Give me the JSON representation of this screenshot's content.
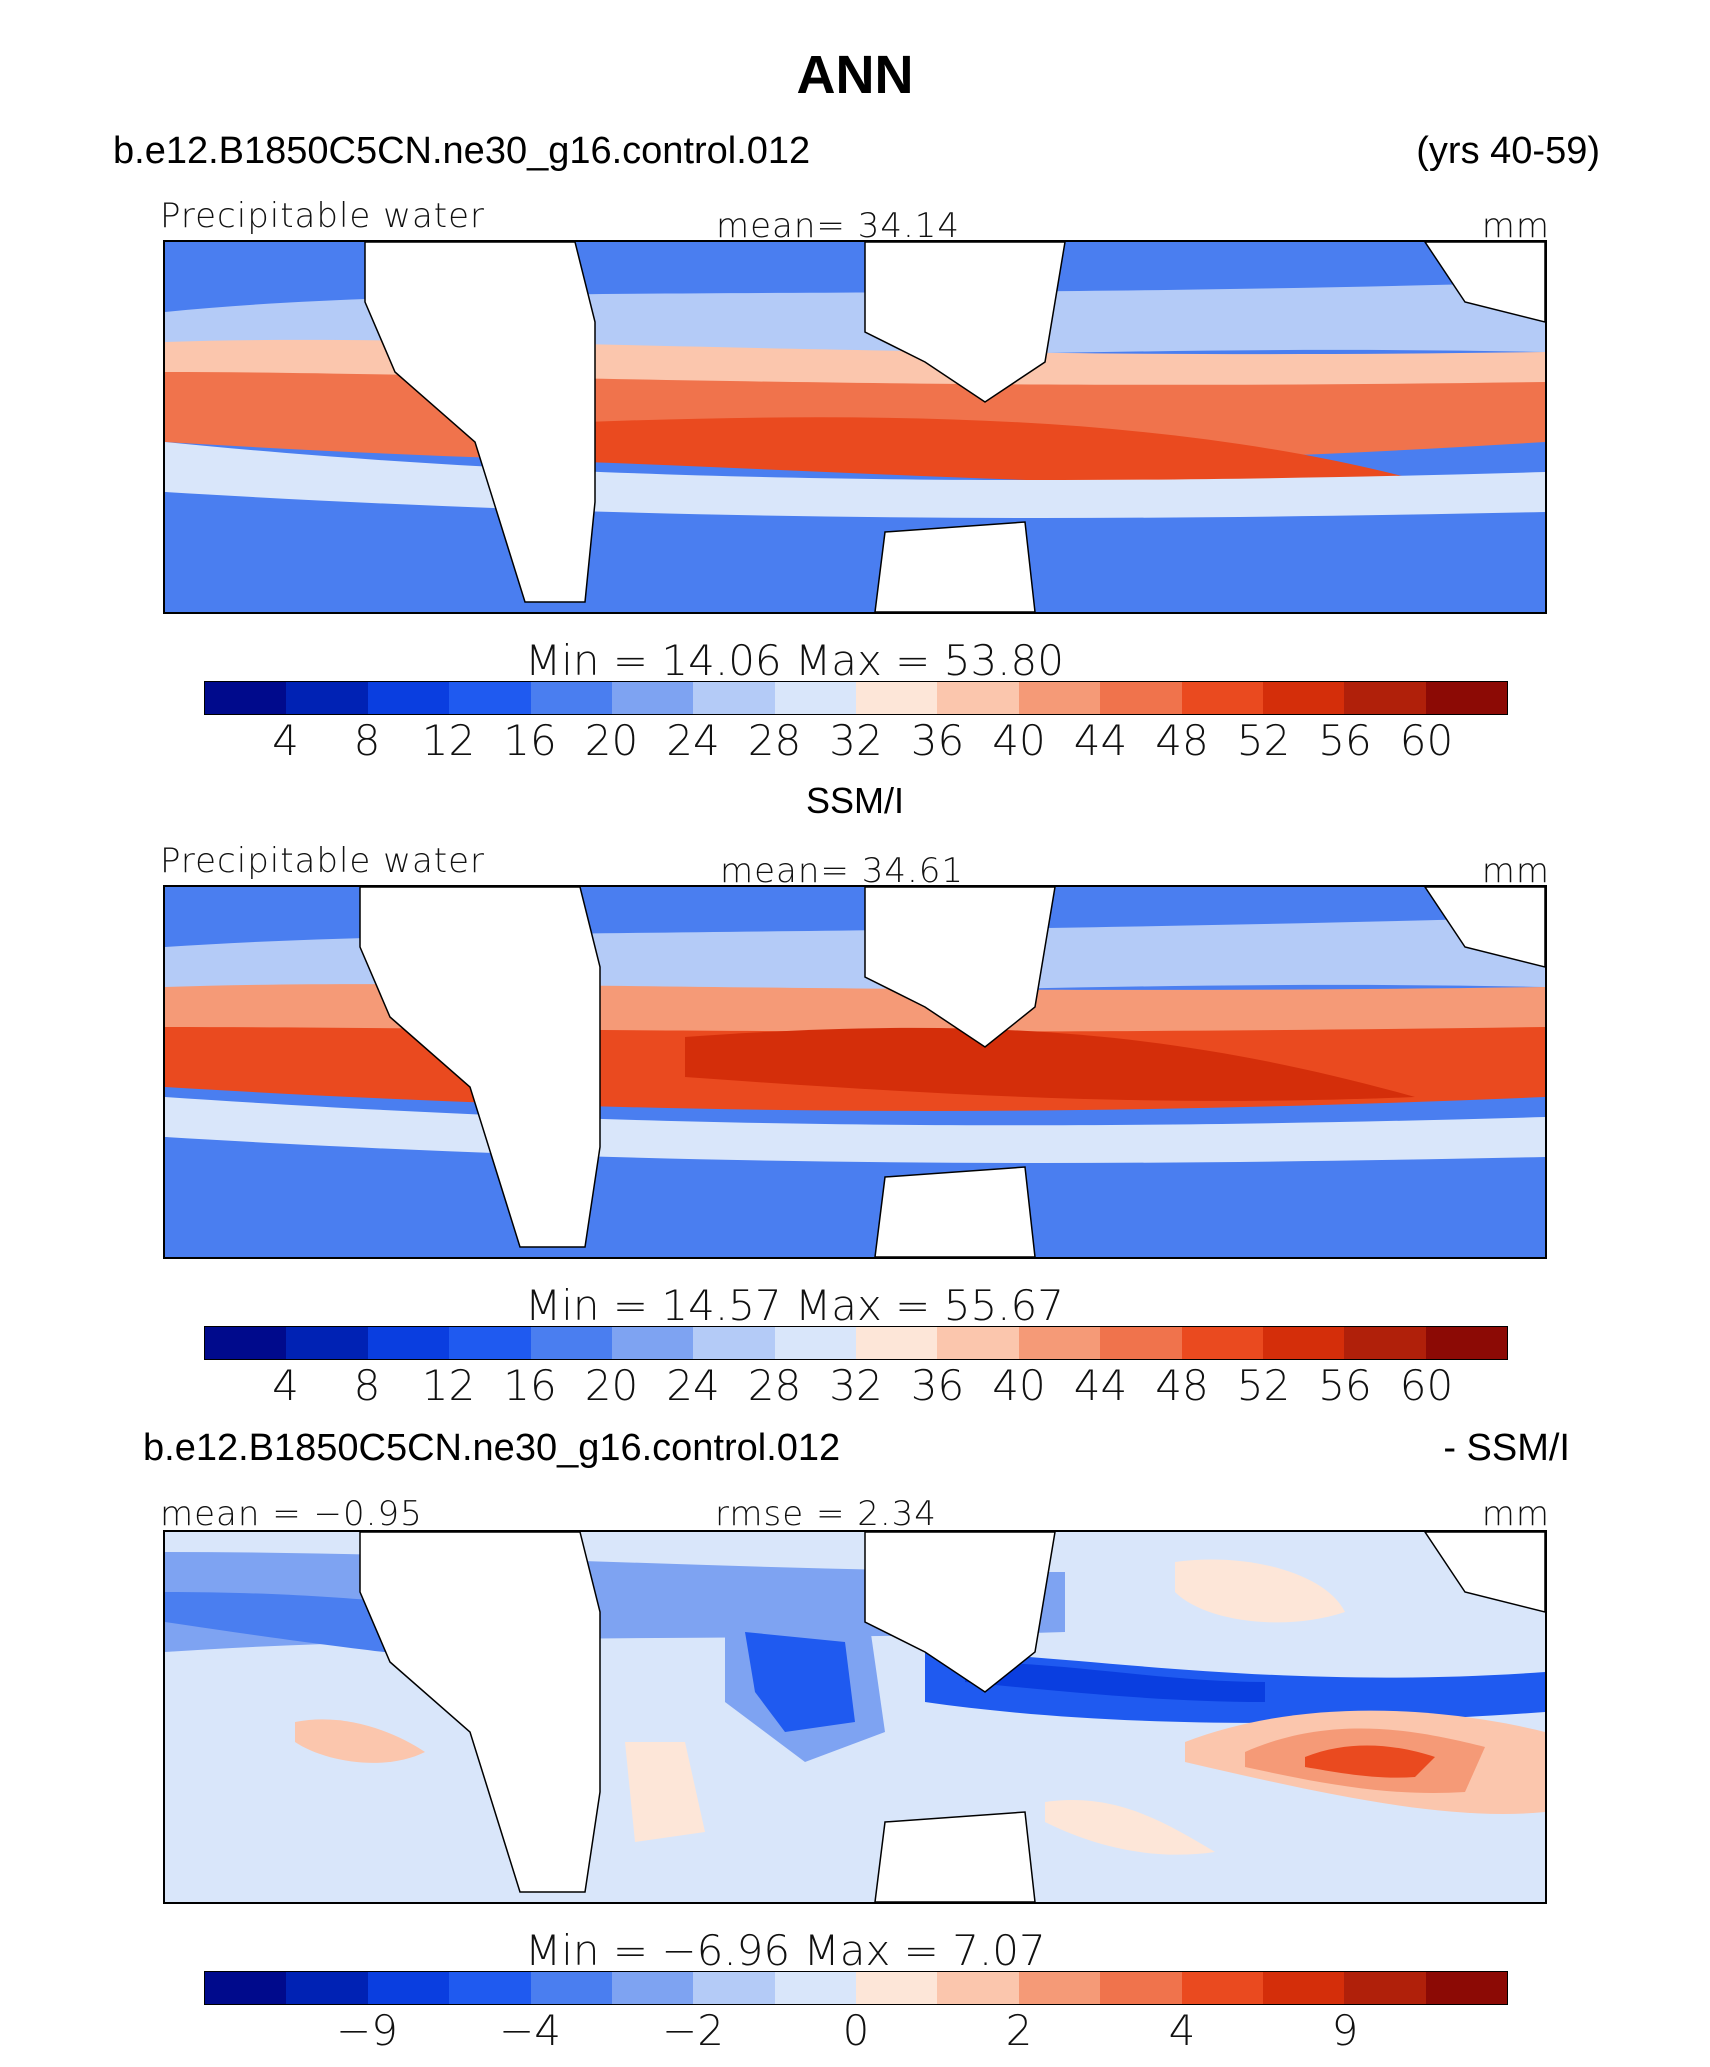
{
  "title": "ANN",
  "header": {
    "case": "b.e12.B1850C5CN.ne30_g16.control.012",
    "years": "(yrs 40-59)"
  },
  "panels": [
    {
      "id": "model",
      "variable": "Precipitable water",
      "stat": "mean=  34.14",
      "units": "mm",
      "min_max": "Min =   14.06 Max =   53.80",
      "colorbar_ticks": [
        "4",
        "8",
        "12",
        "16",
        "20",
        "24",
        "28",
        "32",
        "36",
        "40",
        "44",
        "48",
        "52",
        "56",
        "60"
      ]
    },
    {
      "id": "obs",
      "heading": "SSM/I",
      "variable": "Precipitable water",
      "stat": "mean=  34.61",
      "units": "mm",
      "min_max": "Min =   14.57 Max =   55.67",
      "colorbar_ticks": [
        "4",
        "8",
        "12",
        "16",
        "20",
        "24",
        "28",
        "32",
        "36",
        "40",
        "44",
        "48",
        "52",
        "56",
        "60"
      ]
    },
    {
      "id": "diff",
      "heading_left": "b.e12.B1850C5CN.ne30_g16.control.012",
      "heading_right": "- SSM/I",
      "stat_left": "mean =  −0.95",
      "stat_mid": "rmse =    2.34",
      "units": "mm",
      "min_max": "Min =   −6.96 Max =    7.07",
      "colorbar_ticks": [
        "−9",
        "−4",
        "−2",
        "0",
        "2",
        "4",
        "9"
      ]
    }
  ],
  "colors": {
    "palette": [
      "#000a8c",
      "#0022b4",
      "#0a3ee0",
      "#1f5af0",
      "#4a7ef0",
      "#7ea3f2",
      "#b4cbf7",
      "#d9e6fa",
      "#fde6d8",
      "#fbc6ad",
      "#f59a77",
      "#f0734c",
      "#ea4a1f",
      "#d42e0a",
      "#b0200a",
      "#8c0a05"
    ],
    "land": "#ffffff"
  }
}
